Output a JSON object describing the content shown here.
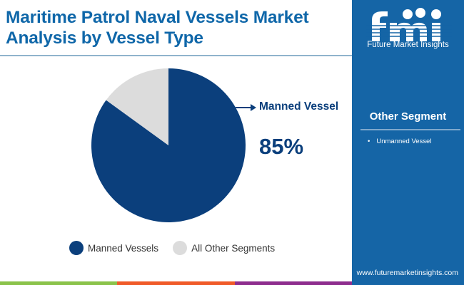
{
  "header": {
    "title": "Maritime Patrol Naval Vessels Market Analysis by Vessel Type"
  },
  "sidebar": {
    "logo_text": "Future Market Insights",
    "segment_title": "Other Segment",
    "segment_items": [
      "Unmanned Vessel"
    ],
    "url": "www.futuremarketinsights.com"
  },
  "colors": {
    "primary": "#0b3f7c",
    "other": "#dcdcdc",
    "title": "#0f67a9",
    "sidebar": "#1565a6",
    "bar_green": "#8bc34a",
    "bar_orange": "#f05a28",
    "bar_purple": "#8e2d8e"
  },
  "chart_data": {
    "type": "pie",
    "categories": [
      "Manned Vessels",
      "All Other Segments"
    ],
    "values": [
      85,
      15
    ],
    "colors": [
      "#0b3f7c",
      "#dcdcdc"
    ],
    "callout": {
      "label": "Manned Vessel",
      "value": "85%"
    },
    "legend": {
      "position": "bottom",
      "entries": [
        "Manned Vessels",
        "All Other Segments"
      ]
    }
  }
}
